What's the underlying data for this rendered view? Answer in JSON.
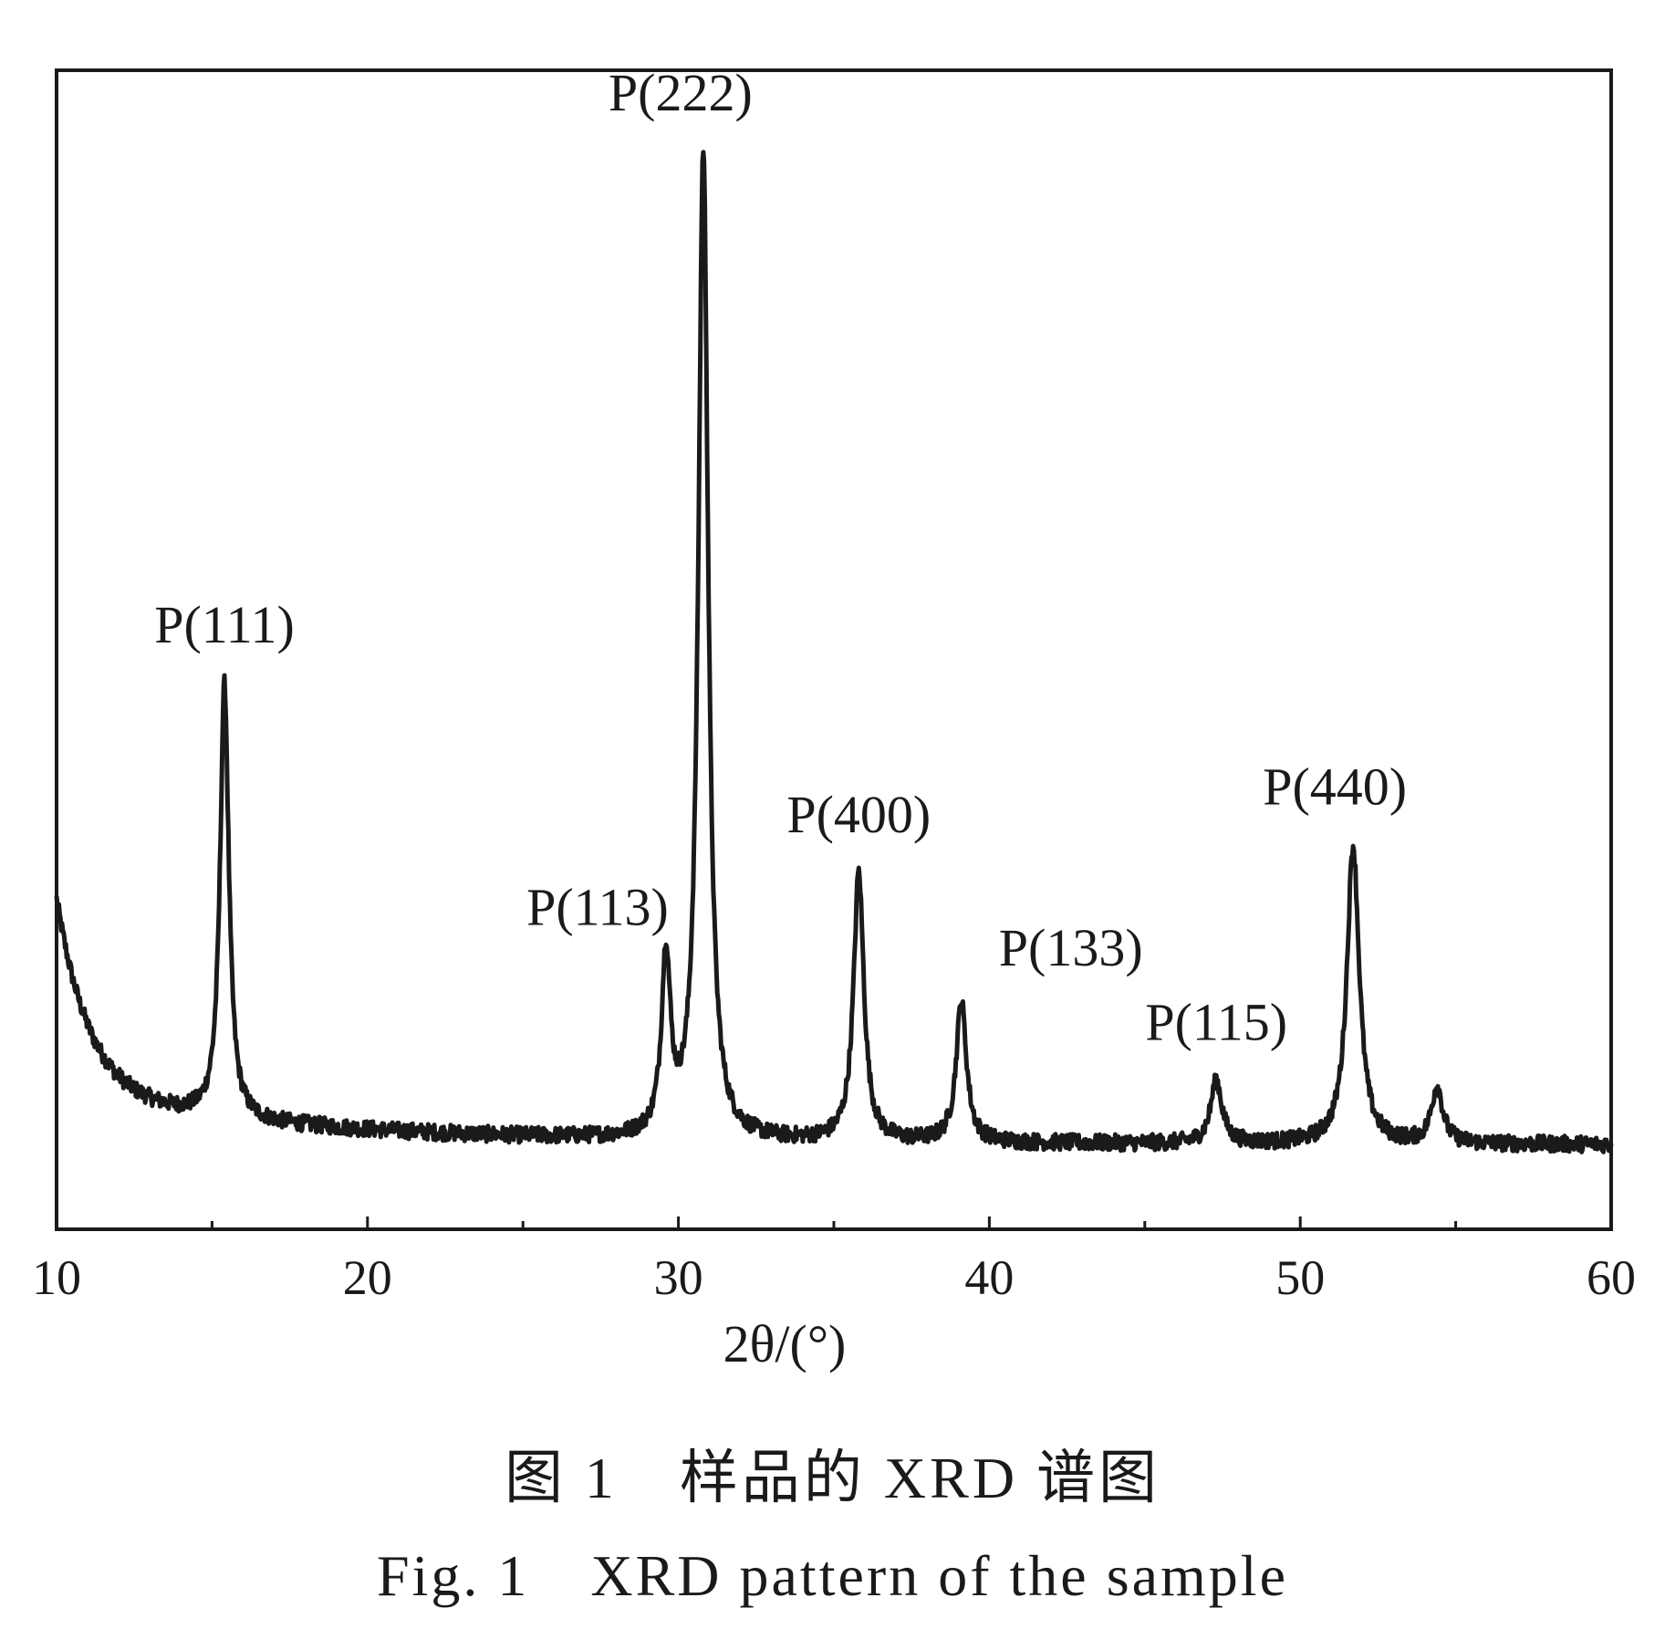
{
  "chart_data": {
    "type": "line",
    "title": "",
    "xlabel": "2θ/(°)",
    "ylabel": "",
    "xlim": [
      10,
      60
    ],
    "ylim": [
      0,
      100
    ],
    "x_ticks_major": [
      "10",
      "20",
      "30",
      "40",
      "50",
      "60"
    ],
    "x_ticks_minor": [
      15,
      25,
      35,
      45,
      55
    ],
    "y_ticks": [],
    "grid": false,
    "legend": "none",
    "line_color": "#1a1a1a",
    "peaks": [
      {
        "label": "P(111)",
        "x": 15.4,
        "y": 47.1
      },
      {
        "label": "P(113)",
        "x": 29.6,
        "y": 23.1
      },
      {
        "label": "P(222)",
        "x": 30.8,
        "y": 93.0
      },
      {
        "label": "P(400)",
        "x": 35.8,
        "y": 30.7
      },
      {
        "label": "P(133)",
        "x": 39.1,
        "y": 19.6
      },
      {
        "label": "P(115)",
        "x": 47.3,
        "y": 12.8
      },
      {
        "label": "P(440)",
        "x": 51.7,
        "y": 33.1
      }
    ],
    "unlabeled_peaks": [
      {
        "x": 54.4,
        "y": 12.2
      }
    ]
  },
  "captions": {
    "cn": "图 1　样品的 XRD 谱图",
    "en": "Fig. 1　XRD pattern of the sample"
  }
}
